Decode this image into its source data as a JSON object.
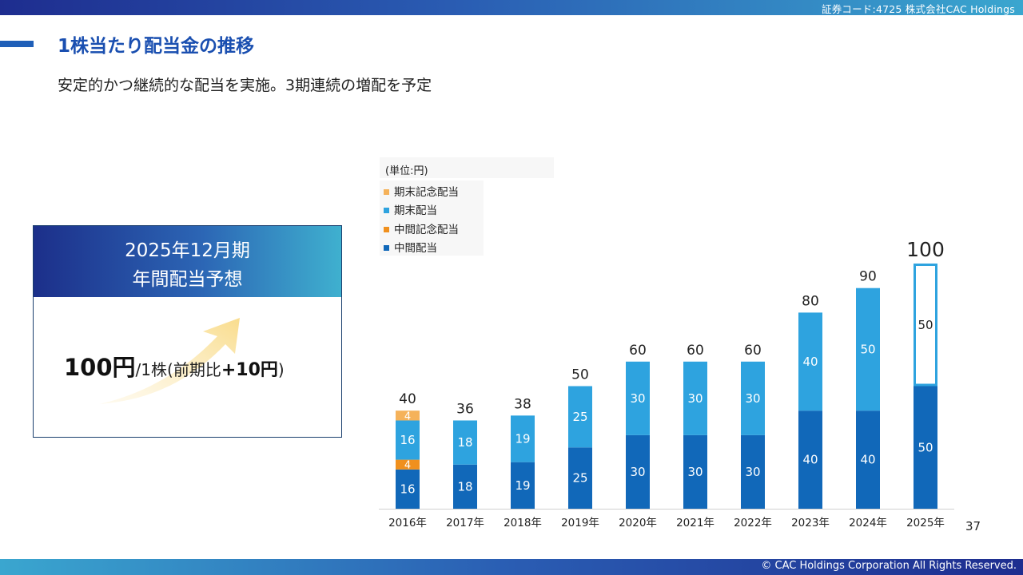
{
  "header": {
    "code_text": "証券コード:4725  株式会社CAC Holdings"
  },
  "page": {
    "title": "1株当たり配当金の推移",
    "subtitle": "安定的かつ継続的な配当を実施。3期連続の増配を予定",
    "page_number": "37"
  },
  "card": {
    "line1": "2025年12月期",
    "line2": "年間配当予想",
    "amount": "100円",
    "per_share": "/1株",
    "paren_open": "(前期比",
    "change": "+10円",
    "paren_close": ")"
  },
  "footer": {
    "copyright": "© CAC Holdings Corporation All Rights Reserved."
  },
  "colors": {
    "interim": "#1168b9",
    "interim_commemorative": "#f0901e",
    "year_end": "#2ea3df",
    "year_end_commemorative": "#f5b25a",
    "forecast_border": "#2ea3df"
  },
  "chart_data": {
    "type": "bar",
    "stacked": true,
    "unit_label": "(単位:円)",
    "categories": [
      "2016年",
      "2017年",
      "2018年",
      "2019年",
      "2020年",
      "2021年",
      "2022年",
      "2023年",
      "2024年",
      "2025年"
    ],
    "series": [
      {
        "name": "中間配当",
        "color": "#1168b9",
        "values": [
          16,
          18,
          19,
          25,
          30,
          30,
          30,
          40,
          40,
          50
        ]
      },
      {
        "name": "中間記念配当",
        "color": "#f0901e",
        "values": [
          4,
          0,
          0,
          0,
          0,
          0,
          0,
          0,
          0,
          0
        ]
      },
      {
        "name": "期末配当",
        "color": "#2ea3df",
        "values": [
          16,
          18,
          19,
          25,
          30,
          30,
          30,
          40,
          50,
          50
        ]
      },
      {
        "name": "期末記念配当",
        "color": "#f5b25a",
        "values": [
          4,
          0,
          0,
          0,
          0,
          0,
          0,
          0,
          0,
          0
        ]
      }
    ],
    "totals": [
      40,
      36,
      38,
      50,
      60,
      60,
      60,
      80,
      90,
      100
    ],
    "forecast_category": "2025年",
    "legend_order": [
      "期末記念配当",
      "期末配当",
      "中間記念配当",
      "中間配当"
    ],
    "ylim": [
      0,
      100
    ]
  }
}
